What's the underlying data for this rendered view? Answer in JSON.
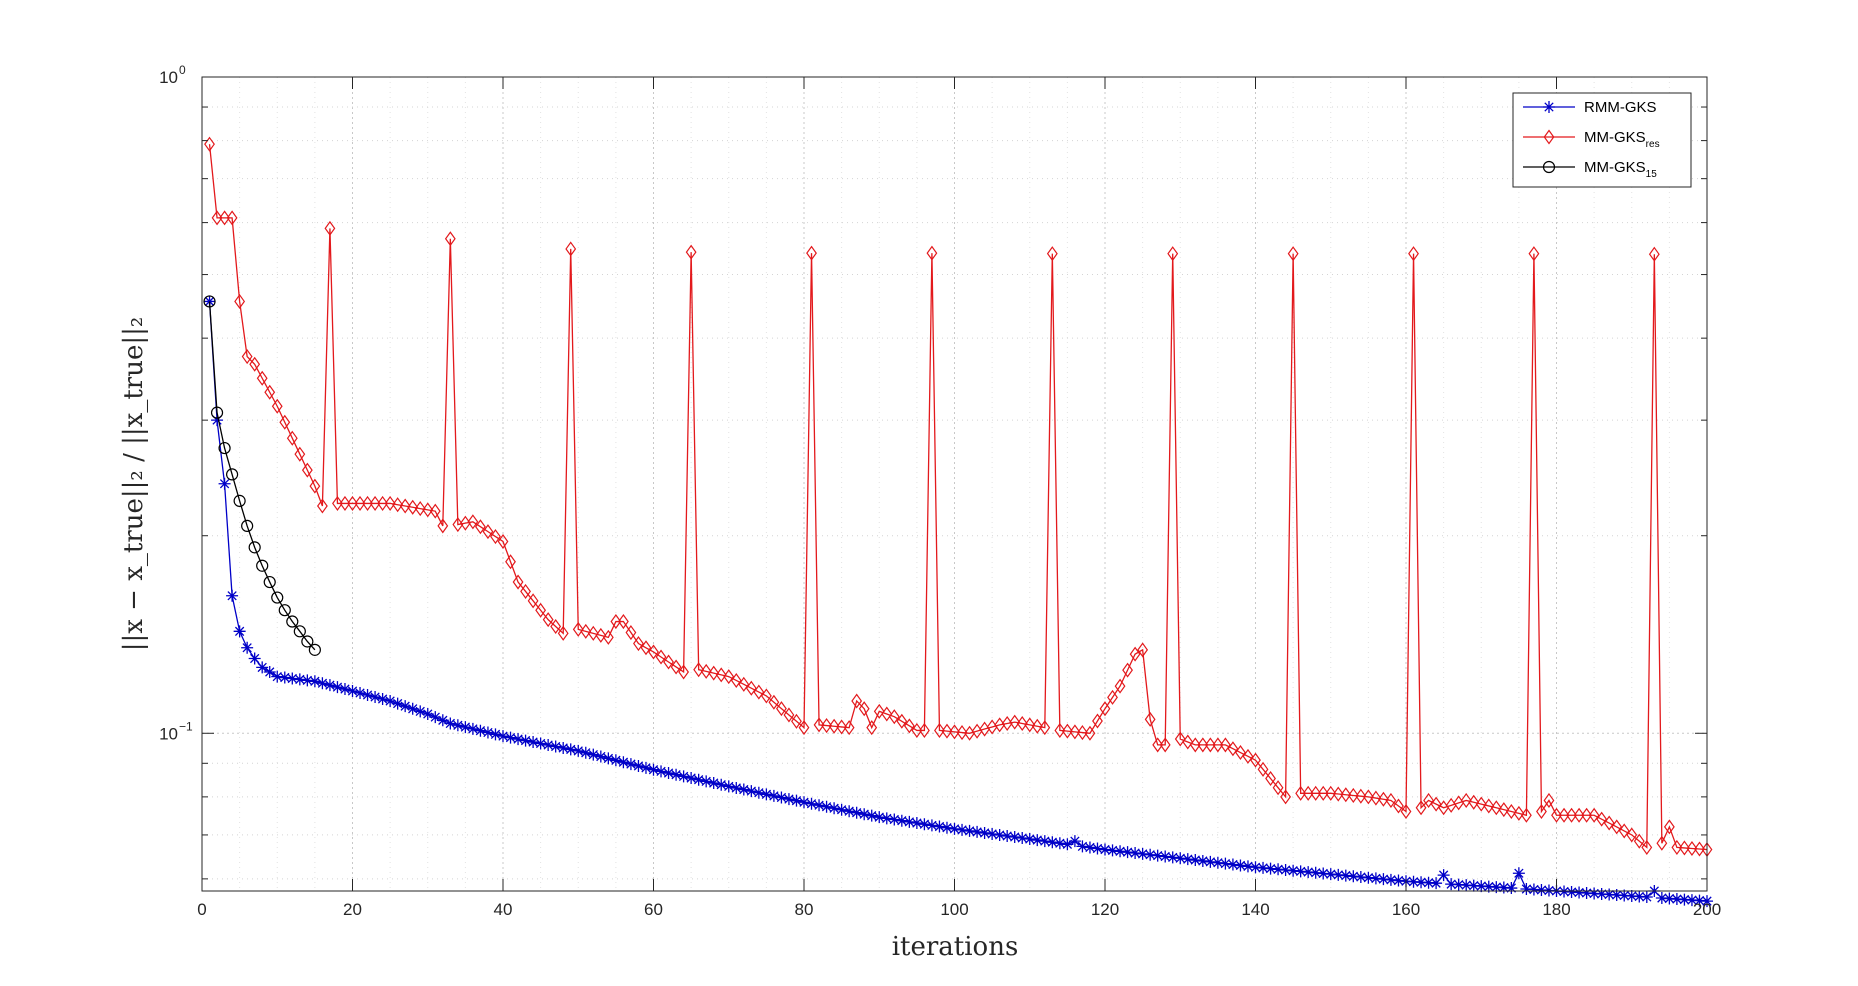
{
  "chart_data": {
    "type": "line",
    "xlabel": "iterations",
    "ylabel": "||x − x_true||₂ / ||x_true||₂",
    "y_scale": "log",
    "xlim": [
      0,
      200
    ],
    "ylim": [
      0.0575,
      1.0
    ],
    "xticks": [
      0,
      20,
      40,
      60,
      80,
      100,
      120,
      140,
      160,
      180,
      200
    ],
    "xtick_labels": [
      "0",
      "20",
      "40",
      "60",
      "80",
      "100",
      "120",
      "140",
      "160",
      "180",
      "200"
    ],
    "ytick_labels": [
      {
        "value": 1.0,
        "base": "10",
        "exp": "0"
      },
      {
        "value": 0.1,
        "base": "10",
        "exp": "−1"
      }
    ],
    "grid": true,
    "legend_position": "top-right",
    "series": [
      {
        "name": "RMM-GKS",
        "label_main": "RMM-GKS",
        "label_sub": "",
        "color": "#0000c8",
        "marker": "asterisk",
        "anchors": [
          [
            1,
            0.455
          ],
          [
            2,
            0.3
          ],
          [
            3,
            0.24
          ],
          [
            4,
            0.162
          ],
          [
            5,
            0.143
          ],
          [
            6,
            0.135
          ],
          [
            7,
            0.13
          ],
          [
            8,
            0.126
          ],
          [
            9,
            0.124
          ],
          [
            10,
            0.122
          ],
          [
            15,
            0.12
          ],
          [
            20,
            0.116
          ],
          [
            25,
            0.112
          ],
          [
            30,
            0.107
          ],
          [
            33,
            0.1035
          ],
          [
            40,
            0.099
          ],
          [
            50,
            0.094
          ],
          [
            60,
            0.088
          ],
          [
            70,
            0.083
          ],
          [
            80,
            0.0785
          ],
          [
            90,
            0.0745
          ],
          [
            100,
            0.0715
          ],
          [
            110,
            0.069
          ],
          [
            120,
            0.0665
          ],
          [
            130,
            0.0645
          ],
          [
            140,
            0.0625
          ],
          [
            150,
            0.061
          ],
          [
            160,
            0.0595
          ],
          [
            170,
            0.0585
          ],
          [
            180,
            0.0575
          ],
          [
            190,
            0.0565
          ],
          [
            200,
            0.0555
          ]
        ],
        "bumps": [
          [
            116,
            0.0685
          ],
          [
            165,
            0.0608
          ],
          [
            175,
            0.0612
          ],
          [
            193,
            0.0575
          ]
        ]
      },
      {
        "name": "MM-GKS_res",
        "label_main": "MM-GKS",
        "label_sub": "res",
        "color": "#e3191c",
        "marker": "diamond",
        "anchors": [
          [
            1,
            0.79
          ],
          [
            2,
            0.61
          ],
          [
            3,
            0.61
          ],
          [
            4,
            0.61
          ],
          [
            5,
            0.455
          ],
          [
            6,
            0.375
          ],
          [
            7,
            0.365
          ],
          [
            10,
            0.315
          ],
          [
            15,
            0.238
          ],
          [
            16,
            0.222
          ],
          [
            18,
            0.224
          ],
          [
            20,
            0.224
          ],
          [
            25,
            0.224
          ],
          [
            31,
            0.218
          ],
          [
            32,
            0.207
          ],
          [
            34,
            0.208
          ],
          [
            36,
            0.21
          ],
          [
            40,
            0.196
          ],
          [
            42,
            0.17
          ],
          [
            46,
            0.149
          ],
          [
            48,
            0.142
          ],
          [
            50,
            0.144
          ],
          [
            52,
            0.142
          ],
          [
            54,
            0.14
          ],
          [
            55,
            0.148
          ],
          [
            56,
            0.148
          ],
          [
            58,
            0.137
          ],
          [
            60,
            0.133
          ],
          [
            64,
            0.124
          ],
          [
            66,
            0.125
          ],
          [
            70,
            0.122
          ],
          [
            75,
            0.114
          ],
          [
            80,
            0.102
          ],
          [
            82,
            0.103
          ],
          [
            86,
            0.102
          ],
          [
            87,
            0.112
          ],
          [
            88,
            0.109
          ],
          [
            89,
            0.102
          ],
          [
            90,
            0.108
          ],
          [
            92,
            0.106
          ],
          [
            95,
            0.101
          ],
          [
            98,
            0.101
          ],
          [
            102,
            0.1
          ],
          [
            106,
            0.103
          ],
          [
            108,
            0.104
          ],
          [
            112,
            0.102
          ],
          [
            114,
            0.101
          ],
          [
            118,
            0.1
          ],
          [
            120,
            0.109
          ],
          [
            122,
            0.118
          ],
          [
            124,
            0.132
          ],
          [
            125,
            0.134
          ],
          [
            126,
            0.105
          ],
          [
            127,
            0.096
          ],
          [
            128,
            0.096
          ],
          [
            130,
            0.098
          ],
          [
            132,
            0.096
          ],
          [
            136,
            0.096
          ],
          [
            140,
            0.091
          ],
          [
            144,
            0.08
          ],
          [
            146,
            0.081
          ],
          [
            150,
            0.081
          ],
          [
            155,
            0.08
          ],
          [
            158,
            0.079
          ],
          [
            160,
            0.076
          ],
          [
            162,
            0.077
          ],
          [
            163,
            0.079
          ],
          [
            165,
            0.077
          ],
          [
            168,
            0.079
          ],
          [
            172,
            0.077
          ],
          [
            176,
            0.075
          ],
          [
            178,
            0.076
          ],
          [
            179,
            0.079
          ],
          [
            180,
            0.075
          ],
          [
            185,
            0.075
          ],
          [
            188,
            0.072
          ],
          [
            190,
            0.07
          ],
          [
            192,
            0.067
          ],
          [
            194,
            0.068
          ],
          [
            195,
            0.072
          ],
          [
            196,
            0.067
          ],
          [
            200,
            0.0665
          ]
        ],
        "spikes": [
          [
            17,
            0.588
          ],
          [
            33,
            0.567
          ],
          [
            49,
            0.547
          ],
          [
            65,
            0.541
          ],
          [
            81,
            0.539
          ],
          [
            97,
            0.539
          ],
          [
            113,
            0.538
          ],
          [
            129,
            0.538
          ],
          [
            145,
            0.538
          ],
          [
            161,
            0.538
          ],
          [
            177,
            0.538
          ],
          [
            193,
            0.537
          ]
        ]
      },
      {
        "name": "MM-GKS_15",
        "label_main": "MM-GKS",
        "label_sub": "15",
        "color": "#000000",
        "marker": "circle",
        "anchors": [
          [
            1,
            0.455
          ],
          [
            2,
            0.308
          ],
          [
            3,
            0.272
          ],
          [
            4,
            0.248
          ],
          [
            5,
            0.226
          ],
          [
            6,
            0.207
          ],
          [
            7,
            0.192
          ],
          [
            8,
            0.18
          ],
          [
            9,
            0.17
          ],
          [
            10,
            0.161
          ],
          [
            11,
            0.154
          ],
          [
            12,
            0.148
          ],
          [
            13,
            0.143
          ],
          [
            14,
            0.138
          ],
          [
            15,
            0.134
          ]
        ]
      }
    ]
  }
}
